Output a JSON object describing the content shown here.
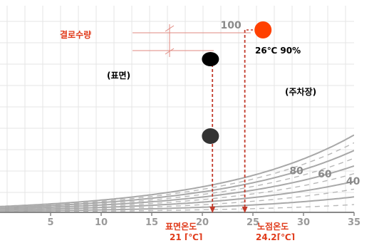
{
  "chart_data": {
    "type": "line",
    "title": "",
    "xlabel": "",
    "ylabel": "",
    "xlim": [
      0,
      35
    ],
    "ylim": [
      0,
      27
    ],
    "x_ticks": [
      5,
      10,
      15,
      20,
      25,
      30,
      35
    ],
    "x_tick_labels": [
      "5",
      "10",
      "15",
      "20",
      "25",
      "30",
      "35"
    ],
    "grid": true,
    "rh_curve_labels": [
      {
        "rh": 100,
        "label": "100"
      },
      {
        "rh": 80,
        "label": "80"
      },
      {
        "rh": 60,
        "label": "60"
      },
      {
        "rh": 40,
        "label": "40"
      }
    ],
    "series": [
      {
        "rh": 100
      },
      {
        "rh": 90
      },
      {
        "rh": 80
      },
      {
        "rh": 70
      },
      {
        "rh": 60
      },
      {
        "rh": 50
      },
      {
        "rh": 40
      },
      {
        "rh": 30
      },
      {
        "rh": 20
      },
      {
        "rh": 10
      }
    ],
    "points": [
      {
        "name": "parking",
        "x": 26,
        "rh": 90,
        "color": "#ff4000"
      },
      {
        "name": "surface",
        "x": 20.8,
        "rh": 100,
        "color": "#000000"
      },
      {
        "name": "surface-low",
        "x": 20.8,
        "rh": 50,
        "color": "#333333"
      }
    ],
    "markers": {
      "surface_temp_x": 21,
      "dew_point_x": 24.2
    },
    "annotations": {
      "condensation_label": "결로수량",
      "surface_label": "(표면)",
      "parking_label": "(주차장)",
      "state_label": "26℃ 90%",
      "surface_temp_line1": "표면온도",
      "surface_temp_line2": "21 [℃]",
      "dew_point_line1": "노점온도",
      "dew_point_line2": "24.2[℃]"
    },
    "colors": {
      "curve": "#a8a8a8",
      "dashed": "#b8b8b8",
      "accent": "#e03a1a",
      "arrow": "#c23a2a",
      "grid": "#e4e4e4"
    }
  }
}
